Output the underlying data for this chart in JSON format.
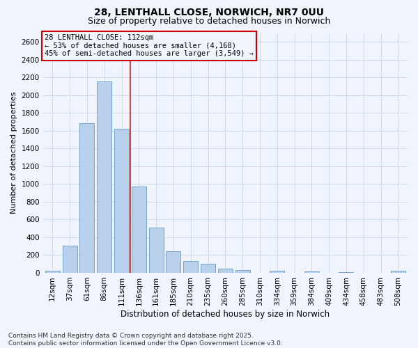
{
  "title1": "28, LENTHALL CLOSE, NORWICH, NR7 0UU",
  "title2": "Size of property relative to detached houses in Norwich",
  "xlabel": "Distribution of detached houses by size in Norwich",
  "ylabel": "Number of detached properties",
  "categories": [
    "12sqm",
    "37sqm",
    "61sqm",
    "86sqm",
    "111sqm",
    "136sqm",
    "161sqm",
    "185sqm",
    "210sqm",
    "235sqm",
    "260sqm",
    "285sqm",
    "310sqm",
    "334sqm",
    "359sqm",
    "384sqm",
    "409sqm",
    "434sqm",
    "458sqm",
    "483sqm",
    "508sqm"
  ],
  "values": [
    20,
    305,
    1685,
    2155,
    1620,
    970,
    510,
    245,
    135,
    100,
    45,
    30,
    0,
    25,
    0,
    15,
    0,
    10,
    0,
    0,
    20
  ],
  "bar_color": "#b8d0ea",
  "bar_edge_color": "#6699cc",
  "vline_color": "#cc2222",
  "vline_x": 4.5,
  "ylim": [
    0,
    2700
  ],
  "yticks": [
    0,
    200,
    400,
    600,
    800,
    1000,
    1200,
    1400,
    1600,
    1800,
    2000,
    2200,
    2400,
    2600
  ],
  "annotation_title": "28 LENTHALL CLOSE: 112sqm",
  "annotation_line1": "← 53% of detached houses are smaller (4,168)",
  "annotation_line2": "45% of semi-detached houses are larger (3,549) →",
  "annotation_box_color": "#cc0000",
  "bg_color": "#f0f4fc",
  "grid_color": "#c8d4e8",
  "footer1": "Contains HM Land Registry data © Crown copyright and database right 2025.",
  "footer2": "Contains public sector information licensed under the Open Government Licence v3.0.",
  "title1_fontsize": 10,
  "title2_fontsize": 9,
  "ylabel_fontsize": 8,
  "xlabel_fontsize": 8.5,
  "tick_fontsize": 7.5,
  "annot_fontsize": 7.5,
  "footer_fontsize": 6.5
}
